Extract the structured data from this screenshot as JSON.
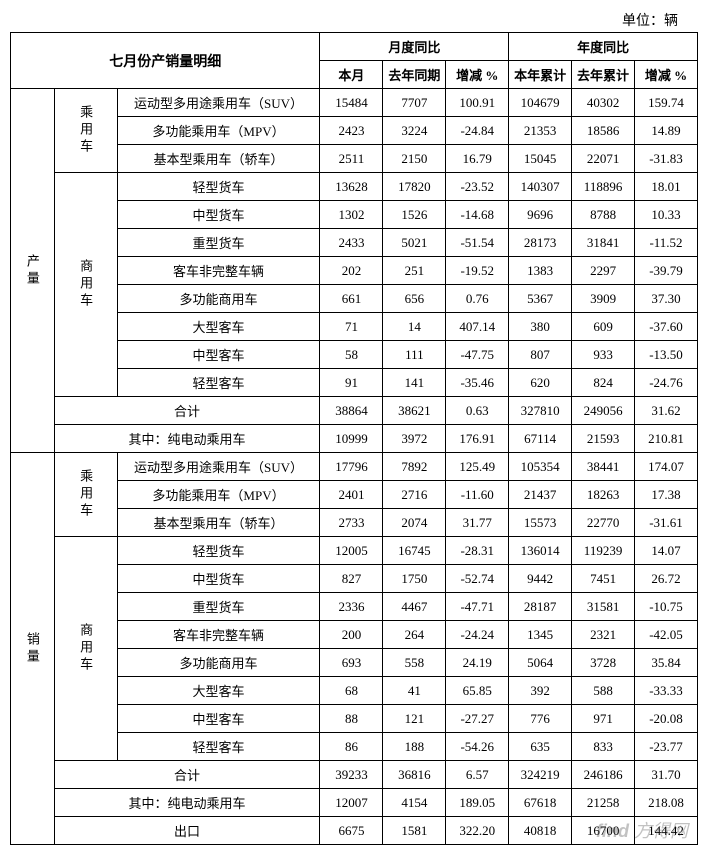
{
  "unit": "单位：辆",
  "title": "七月份产销量明细",
  "headers": {
    "monthGroup": "月度同比",
    "yearGroup": "年度同比",
    "thisMonth": "本月",
    "lastYearSame": "去年同期",
    "change": "增减 %",
    "thisYearCum": "本年累计",
    "lastYearCum": "去年累计"
  },
  "sections": {
    "production": "产量",
    "sales": "销量",
    "passenger": "乘用车",
    "commercial": "商用车"
  },
  "labels": {
    "total": "合计",
    "evSub": "其中：纯电动乘用车",
    "export": "出口"
  },
  "prod": {
    "p": [
      {
        "n": "运动型多用途乘用车（SUV）",
        "m": "15484",
        "ly": "7707",
        "mc": "100.91",
        "yc": "104679",
        "lyc": "40302",
        "ycc": "159.74"
      },
      {
        "n": "多功能乘用车（MPV）",
        "m": "2423",
        "ly": "3224",
        "mc": "-24.84",
        "yc": "21353",
        "lyc": "18586",
        "ycc": "14.89"
      },
      {
        "n": "基本型乘用车（轿车）",
        "m": "2511",
        "ly": "2150",
        "mc": "16.79",
        "yc": "15045",
        "lyc": "22071",
        "ycc": "-31.83"
      }
    ],
    "c": [
      {
        "n": "轻型货车",
        "m": "13628",
        "ly": "17820",
        "mc": "-23.52",
        "yc": "140307",
        "lyc": "118896",
        "ycc": "18.01"
      },
      {
        "n": "中型货车",
        "m": "1302",
        "ly": "1526",
        "mc": "-14.68",
        "yc": "9696",
        "lyc": "8788",
        "ycc": "10.33"
      },
      {
        "n": "重型货车",
        "m": "2433",
        "ly": "5021",
        "mc": "-51.54",
        "yc": "28173",
        "lyc": "31841",
        "ycc": "-11.52"
      },
      {
        "n": "客车非完整车辆",
        "m": "202",
        "ly": "251",
        "mc": "-19.52",
        "yc": "1383",
        "lyc": "2297",
        "ycc": "-39.79"
      },
      {
        "n": "多功能商用车",
        "m": "661",
        "ly": "656",
        "mc": "0.76",
        "yc": "5367",
        "lyc": "3909",
        "ycc": "37.30"
      },
      {
        "n": "大型客车",
        "m": "71",
        "ly": "14",
        "mc": "407.14",
        "yc": "380",
        "lyc": "609",
        "ycc": "-37.60"
      },
      {
        "n": "中型客车",
        "m": "58",
        "ly": "111",
        "mc": "-47.75",
        "yc": "807",
        "lyc": "933",
        "ycc": "-13.50"
      },
      {
        "n": "轻型客车",
        "m": "91",
        "ly": "141",
        "mc": "-35.46",
        "yc": "620",
        "lyc": "824",
        "ycc": "-24.76"
      }
    ],
    "total": {
      "m": "38864",
      "ly": "38621",
      "mc": "0.63",
      "yc": "327810",
      "lyc": "249056",
      "ycc": "31.62"
    },
    "ev": {
      "m": "10999",
      "ly": "3972",
      "mc": "176.91",
      "yc": "67114",
      "lyc": "21593",
      "ycc": "210.81"
    }
  },
  "sales": {
    "p": [
      {
        "n": "运动型多用途乘用车（SUV）",
        "m": "17796",
        "ly": "7892",
        "mc": "125.49",
        "yc": "105354",
        "lyc": "38441",
        "ycc": "174.07"
      },
      {
        "n": "多功能乘用车（MPV）",
        "m": "2401",
        "ly": "2716",
        "mc": "-11.60",
        "yc": "21437",
        "lyc": "18263",
        "ycc": "17.38"
      },
      {
        "n": "基本型乘用车（轿车）",
        "m": "2733",
        "ly": "2074",
        "mc": "31.77",
        "yc": "15573",
        "lyc": "22770",
        "ycc": "-31.61"
      }
    ],
    "c": [
      {
        "n": "轻型货车",
        "m": "12005",
        "ly": "16745",
        "mc": "-28.31",
        "yc": "136014",
        "lyc": "119239",
        "ycc": "14.07"
      },
      {
        "n": "中型货车",
        "m": "827",
        "ly": "1750",
        "mc": "-52.74",
        "yc": "9442",
        "lyc": "7451",
        "ycc": "26.72"
      },
      {
        "n": "重型货车",
        "m": "2336",
        "ly": "4467",
        "mc": "-47.71",
        "yc": "28187",
        "lyc": "31581",
        "ycc": "-10.75"
      },
      {
        "n": "客车非完整车辆",
        "m": "200",
        "ly": "264",
        "mc": "-24.24",
        "yc": "1345",
        "lyc": "2321",
        "ycc": "-42.05"
      },
      {
        "n": "多功能商用车",
        "m": "693",
        "ly": "558",
        "mc": "24.19",
        "yc": "5064",
        "lyc": "3728",
        "ycc": "35.84"
      },
      {
        "n": "大型客车",
        "m": "68",
        "ly": "41",
        "mc": "65.85",
        "yc": "392",
        "lyc": "588",
        "ycc": "-33.33"
      },
      {
        "n": "中型客车",
        "m": "88",
        "ly": "121",
        "mc": "-27.27",
        "yc": "776",
        "lyc": "971",
        "ycc": "-20.08"
      },
      {
        "n": "轻型客车",
        "m": "86",
        "ly": "188",
        "mc": "-54.26",
        "yc": "635",
        "lyc": "833",
        "ycc": "-23.77"
      }
    ],
    "total": {
      "m": "39233",
      "ly": "36816",
      "mc": "6.57",
      "yc": "324219",
      "lyc": "246186",
      "ycc": "31.70"
    },
    "ev": {
      "m": "12007",
      "ly": "4154",
      "mc": "189.05",
      "yc": "67618",
      "lyc": "21258",
      "ycc": "218.08"
    },
    "export": {
      "m": "6675",
      "ly": "1581",
      "mc": "322.20",
      "yc": "40818",
      "lyc": "16700",
      "ycc": "144.42"
    }
  },
  "watermark": "find 方得网"
}
